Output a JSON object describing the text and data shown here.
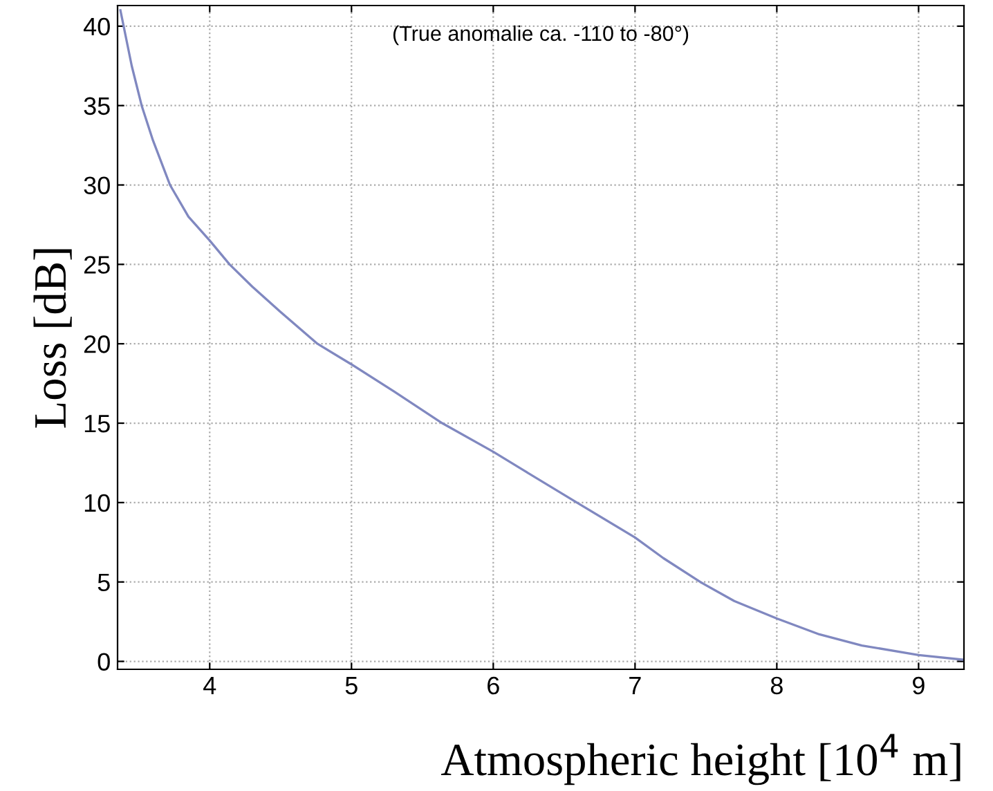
{
  "chart_data": {
    "type": "line",
    "xlabel": "Atmospheric height [10$^{4}$ m]",
    "ylabel": "Loss [dB]",
    "annotations": [
      "(True anomalie ca. -110 to -80°)"
    ],
    "series": [
      {
        "color": "#8088c0",
        "x": [
          3.37,
          3.45,
          3.52,
          3.6,
          3.72,
          3.85,
          4.0,
          4.14,
          4.3,
          4.5,
          4.76,
          5.0,
          5.3,
          5.64,
          6.0,
          6.22,
          6.59,
          7.0,
          7.2,
          7.46,
          7.7,
          8.0,
          8.3,
          8.6,
          9.0,
          9.32
        ],
        "values": [
          41,
          37.5,
          35,
          32.8,
          30,
          28,
          26.5,
          25,
          23.6,
          22,
          20,
          18.7,
          17,
          15,
          13.2,
          12,
          10,
          7.8,
          6.5,
          5,
          3.8,
          2.7,
          1.7,
          1,
          0.4,
          0.1
        ]
      }
    ],
    "xlim": [
      3.35,
      9.32
    ],
    "ylim": [
      -0.5,
      41.3
    ],
    "xticks": [
      4,
      5,
      6,
      7,
      8,
      9
    ],
    "yticks": [
      0,
      5,
      10,
      15,
      20,
      25,
      30,
      35,
      40
    ],
    "grid": true
  }
}
